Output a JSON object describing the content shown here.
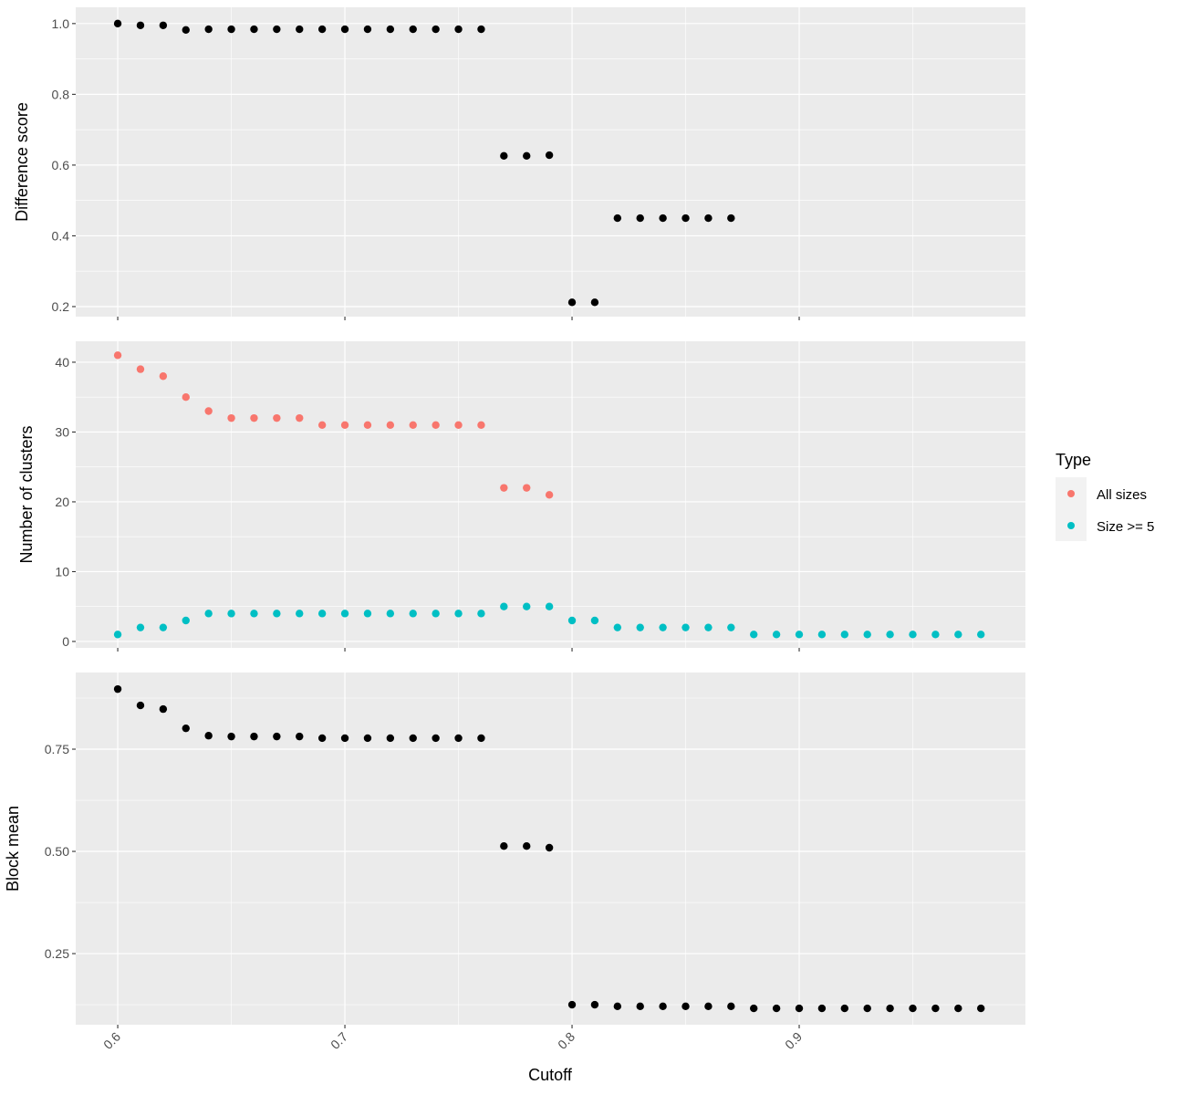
{
  "chart_data": {
    "type": "scatter",
    "xlabel": "Cutoff",
    "x_ticks": [
      0.6,
      0.7,
      0.8,
      0.9
    ],
    "x_tick_labels": [
      "0.6",
      "0.7",
      "0.8",
      "0.9"
    ],
    "xlim": [
      0.5815,
      0.9996
    ],
    "grid": true,
    "legend": {
      "title": "Type",
      "placement": "right",
      "entries": [
        {
          "label": "All sizes",
          "color": "#F8766D"
        },
        {
          "label": "Size >= 5",
          "color": "#00BFC4"
        }
      ]
    },
    "panels": [
      {
        "ylabel": "Difference score",
        "ylim": [
          0.1716,
          1.046
        ],
        "y_ticks": [
          0.2,
          0.4,
          0.6,
          0.8,
          1.0
        ],
        "y_tick_labels": [
          "0.2",
          "0.4",
          "0.6",
          "0.8",
          "1.0"
        ],
        "y_minor": [
          0.3,
          0.5,
          0.7,
          0.9
        ],
        "series": [
          {
            "name": "Difference score",
            "color": "#000000",
            "x": [
              0.6,
              0.61,
              0.62,
              0.63,
              0.64,
              0.65,
              0.66,
              0.67,
              0.68,
              0.69,
              0.7,
              0.71,
              0.72,
              0.73,
              0.74,
              0.75,
              0.76,
              0.77,
              0.78,
              0.79,
              0.8,
              0.81,
              0.82,
              0.83,
              0.84,
              0.85,
              0.86,
              0.87
            ],
            "y": [
              1.0,
              0.995,
              0.995,
              0.982,
              0.984,
              0.984,
              0.984,
              0.984,
              0.984,
              0.984,
              0.984,
              0.984,
              0.984,
              0.984,
              0.984,
              0.984,
              0.984,
              0.626,
              0.626,
              0.628,
              0.212,
              0.212,
              0.45,
              0.45,
              0.45,
              0.45,
              0.45,
              0.45
            ]
          }
        ]
      },
      {
        "ylabel": "Number of clusters",
        "ylim": [
          -0.92,
          43.0
        ],
        "y_ticks": [
          0,
          10,
          20,
          30,
          40
        ],
        "y_tick_labels": [
          "0",
          "10",
          "20",
          "30",
          "40"
        ],
        "y_minor": [
          5,
          15,
          25,
          35
        ],
        "series": [
          {
            "name": "All sizes",
            "color": "#F8766D",
            "x": [
              0.6,
              0.61,
              0.62,
              0.63,
              0.64,
              0.65,
              0.66,
              0.67,
              0.68,
              0.69,
              0.7,
              0.71,
              0.72,
              0.73,
              0.74,
              0.75,
              0.76,
              0.77,
              0.78,
              0.79
            ],
            "y": [
              41,
              39,
              38,
              35,
              33,
              32,
              32,
              32,
              32,
              31,
              31,
              31,
              31,
              31,
              31,
              31,
              31,
              22,
              22,
              21
            ]
          },
          {
            "name": "Size >= 5",
            "color": "#00BFC4",
            "x": [
              0.6,
              0.61,
              0.62,
              0.63,
              0.64,
              0.65,
              0.66,
              0.67,
              0.68,
              0.69,
              0.7,
              0.71,
              0.72,
              0.73,
              0.74,
              0.75,
              0.76,
              0.77,
              0.78,
              0.79,
              0.8,
              0.81,
              0.82,
              0.83,
              0.84,
              0.85,
              0.86,
              0.87,
              0.88,
              0.89,
              0.9,
              0.91,
              0.92,
              0.93,
              0.94,
              0.95,
              0.96,
              0.97,
              0.98
            ],
            "y": [
              1,
              2,
              2,
              3,
              4,
              4,
              4,
              4,
              4,
              4,
              4,
              4,
              4,
              4,
              4,
              4,
              4,
              5,
              5,
              5,
              3,
              3,
              2,
              2,
              2,
              2,
              2,
              2,
              1,
              1,
              1,
              1,
              1,
              1,
              1,
              1,
              1,
              1,
              1
            ]
          }
        ]
      },
      {
        "ylabel": "Block mean",
        "ylim": [
          0.076,
          0.9375
        ],
        "y_ticks": [
          0.25,
          0.5,
          0.75
        ],
        "y_tick_labels": [
          "0.25",
          "0.50",
          "0.75"
        ],
        "y_minor": [
          0.125,
          0.375,
          0.625,
          0.875
        ],
        "series": [
          {
            "name": "Block mean",
            "color": "#000000",
            "x": [
              0.6,
              0.61,
              0.62,
              0.63,
              0.64,
              0.65,
              0.66,
              0.67,
              0.68,
              0.69,
              0.7,
              0.71,
              0.72,
              0.73,
              0.74,
              0.75,
              0.76,
              0.77,
              0.78,
              0.79,
              0.8,
              0.81,
              0.82,
              0.83,
              0.84,
              0.85,
              0.86,
              0.87,
              0.88,
              0.89,
              0.9,
              0.91,
              0.92,
              0.93,
              0.94,
              0.95,
              0.96,
              0.97,
              0.98
            ],
            "y": [
              0.897,
              0.857,
              0.848,
              0.801,
              0.783,
              0.781,
              0.781,
              0.781,
              0.781,
              0.777,
              0.777,
              0.777,
              0.777,
              0.777,
              0.777,
              0.777,
              0.777,
              0.513,
              0.513,
              0.509,
              0.125,
              0.125,
              0.121,
              0.121,
              0.121,
              0.121,
              0.121,
              0.121,
              0.116,
              0.116,
              0.116,
              0.116,
              0.116,
              0.116,
              0.116,
              0.116,
              0.116,
              0.116,
              0.116
            ]
          }
        ]
      }
    ]
  }
}
